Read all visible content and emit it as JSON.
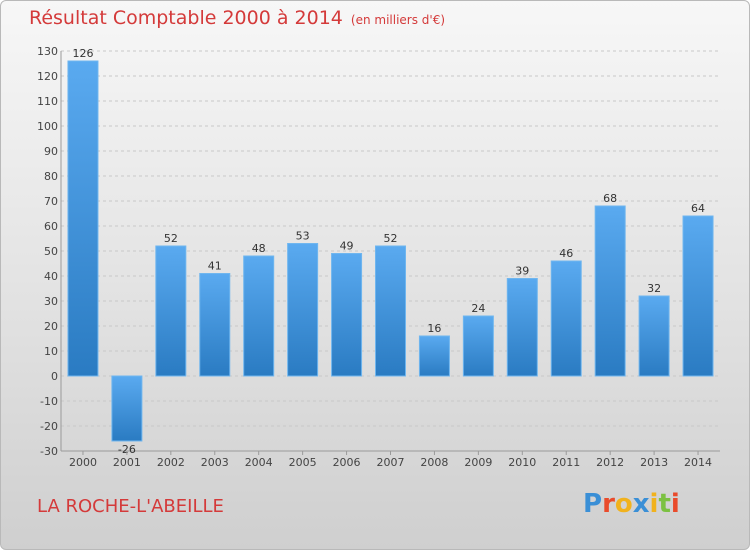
{
  "header": {
    "title": "Résultat Comptable 2000 à 2014",
    "subtitle": "(en milliers d'€)"
  },
  "footer": {
    "commune": "LA ROCHE-L'ABEILLE",
    "logo_text": "Proxiti",
    "logo_colors": [
      "#3a8fd6",
      "#e94b2b",
      "#f1b21d",
      "#3a8fd6",
      "#f1b21d",
      "#7cc142",
      "#e94b2b"
    ]
  },
  "colors": {
    "bar_top": "#5aaaf0",
    "bar_bottom": "#2a7bc2",
    "grid": "#c8c8c8",
    "accent": "#d43a3a"
  },
  "chart_data": {
    "type": "bar",
    "title": "Résultat Comptable 2000 à 2014",
    "subtitle": "(en milliers d'€)",
    "categories": [
      "2000",
      "2001",
      "2002",
      "2003",
      "2004",
      "2005",
      "2006",
      "2007",
      "2008",
      "2009",
      "2010",
      "2011",
      "2012",
      "2013",
      "2014"
    ],
    "values": [
      126,
      -26,
      52,
      41,
      48,
      53,
      49,
      52,
      16,
      24,
      39,
      46,
      68,
      32,
      64
    ],
    "value_labels": [
      "126",
      "-26",
      "52",
      "41",
      "48",
      "53",
      "49",
      "52",
      "16",
      "24",
      "39",
      "46",
      "68",
      "32",
      "64"
    ],
    "ylim": [
      -30,
      130
    ],
    "y_ticks": [
      -30,
      -20,
      -10,
      0,
      10,
      20,
      30,
      40,
      50,
      60,
      70,
      80,
      90,
      100,
      110,
      120,
      130
    ],
    "grid": true
  }
}
